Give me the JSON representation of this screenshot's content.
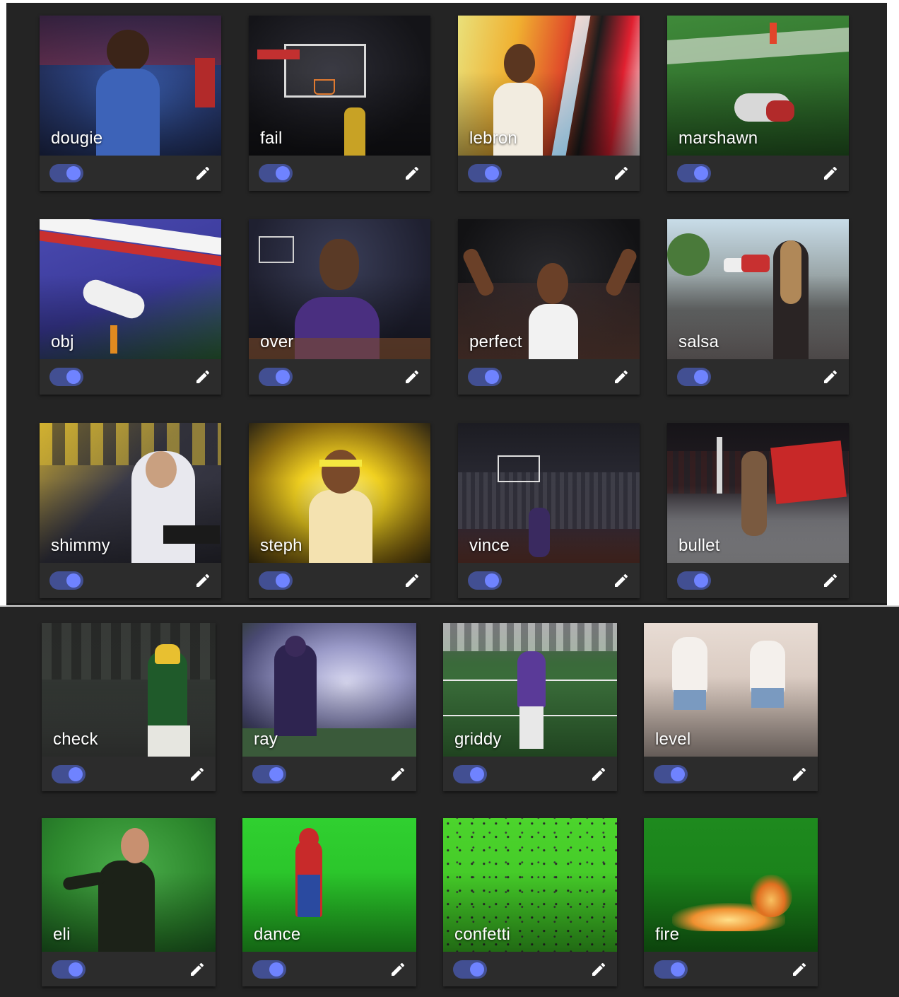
{
  "colors": {
    "panel_bg": "#242424",
    "card_bg": "#2c2c2c",
    "caption_text": "#ffffff",
    "toggle_track": "#424f92",
    "toggle_knob": "#6f83ff",
    "edit_icon": "#ffffff"
  },
  "icons": {
    "edit": "pencil-icon"
  },
  "top_grid": {
    "cards": [
      {
        "label": "dougie",
        "enabled": true
      },
      {
        "label": "fail",
        "enabled": true
      },
      {
        "label": "lebron",
        "enabled": true
      },
      {
        "label": "marshawn",
        "enabled": true
      },
      {
        "label": "obj",
        "enabled": true
      },
      {
        "label": "over",
        "enabled": true
      },
      {
        "label": "perfect",
        "enabled": true
      },
      {
        "label": "salsa",
        "enabled": true
      },
      {
        "label": "shimmy",
        "enabled": true
      },
      {
        "label": "steph",
        "enabled": true
      },
      {
        "label": "vince",
        "enabled": true
      },
      {
        "label": "bullet",
        "enabled": true
      }
    ]
  },
  "bottom_grid": {
    "cards": [
      {
        "label": "check",
        "enabled": true
      },
      {
        "label": "ray",
        "enabled": true
      },
      {
        "label": "griddy",
        "enabled": true
      },
      {
        "label": "level",
        "enabled": true
      },
      {
        "label": "eli",
        "enabled": true
      },
      {
        "label": "dance",
        "enabled": true
      },
      {
        "label": "confetti",
        "enabled": true
      },
      {
        "label": "fire",
        "enabled": true
      }
    ]
  }
}
